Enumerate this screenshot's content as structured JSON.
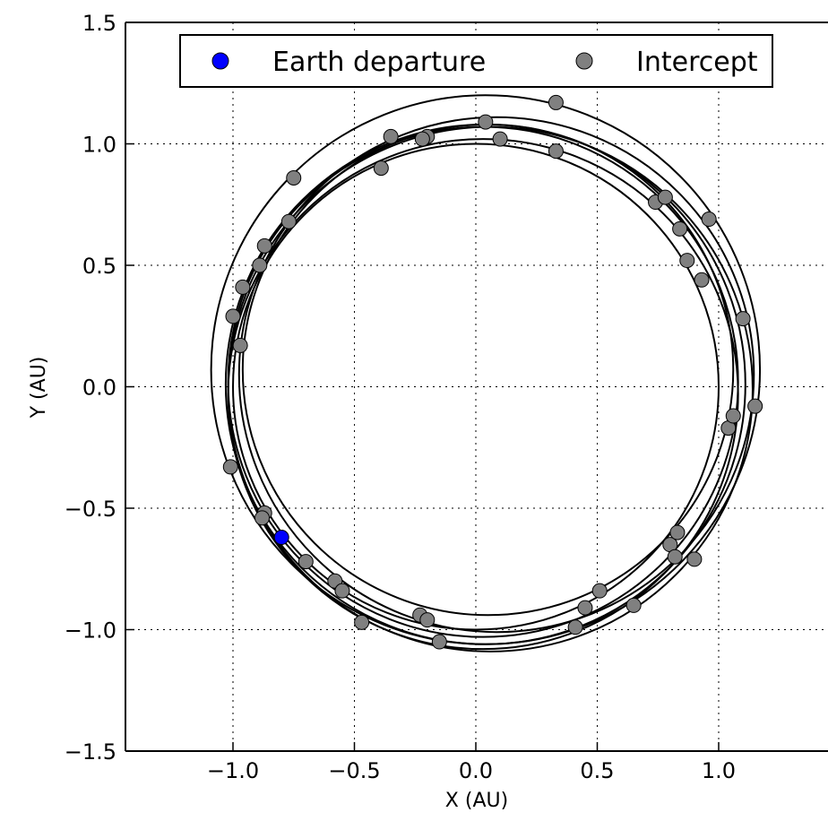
{
  "chart_data": {
    "type": "scatter",
    "xlabel": "X (AU)",
    "ylabel": "Y (AU)",
    "xlim": [
      -1.43,
      1.45
    ],
    "ylim": [
      -1.5,
      1.5
    ],
    "xticks": [
      -1.0,
      -0.5,
      0.0,
      0.5,
      1.0
    ],
    "yticks": [
      -1.5,
      -1.0,
      -0.5,
      0.0,
      0.5,
      1.0,
      1.5
    ],
    "xtick_labels": [
      "−1.0",
      "−0.5",
      "0.0",
      "0.5",
      "1.0"
    ],
    "ytick_labels": [
      "−1.5",
      "−1.0",
      "−0.5",
      "0.0",
      "0.5",
      "1.0",
      "1.5"
    ],
    "grid": true,
    "legend_placement": "top",
    "orbits": [
      {
        "cx": 0.0,
        "cy": 0.0,
        "r": 1.0
      },
      {
        "cx": 0.03,
        "cy": 0.02,
        "r": 1.05
      },
      {
        "cx": 0.05,
        "cy": 0.07,
        "r": 1.01
      },
      {
        "cx": 0.04,
        "cy": 0.01,
        "r": 1.07
      },
      {
        "cx": 0.03,
        "cy": -0.03,
        "r": 1.05
      },
      {
        "cx": 0.06,
        "cy": -0.01,
        "r": 1.08
      },
      {
        "cx": 0.085,
        "cy": 0.05,
        "r": 1.06
      },
      {
        "cx": 0.04,
        "cy": 0.07,
        "r": 1.13
      }
    ],
    "series": [
      {
        "name": "Earth departure",
        "color": "#0000ff",
        "points": [
          {
            "x": -0.8,
            "y": -0.62
          }
        ]
      },
      {
        "name": "Intercept",
        "color": "#808080",
        "points": [
          {
            "x": -0.75,
            "y": 0.86
          },
          {
            "x": -0.77,
            "y": 0.68
          },
          {
            "x": -0.87,
            "y": 0.58
          },
          {
            "x": -0.89,
            "y": 0.5
          },
          {
            "x": -0.96,
            "y": 0.41
          },
          {
            "x": -1.0,
            "y": 0.29
          },
          {
            "x": -0.97,
            "y": 0.17
          },
          {
            "x": -1.01,
            "y": -0.33
          },
          {
            "x": -0.87,
            "y": -0.52
          },
          {
            "x": -0.88,
            "y": -0.54
          },
          {
            "x": -0.7,
            "y": -0.72
          },
          {
            "x": -0.58,
            "y": -0.8
          },
          {
            "x": -0.55,
            "y": -0.84
          },
          {
            "x": -0.47,
            "y": -0.97
          },
          {
            "x": -0.23,
            "y": -0.94
          },
          {
            "x": -0.2,
            "y": -0.96
          },
          {
            "x": -0.15,
            "y": -1.05
          },
          {
            "x": 0.41,
            "y": -0.99
          },
          {
            "x": 0.45,
            "y": -0.91
          },
          {
            "x": 0.51,
            "y": -0.84
          },
          {
            "x": 0.65,
            "y": -0.9
          },
          {
            "x": 0.8,
            "y": -0.65
          },
          {
            "x": 0.82,
            "y": -0.7
          },
          {
            "x": 0.83,
            "y": -0.6
          },
          {
            "x": 0.9,
            "y": -0.71
          },
          {
            "x": 1.04,
            "y": -0.17
          },
          {
            "x": 1.06,
            "y": -0.12
          },
          {
            "x": 1.15,
            "y": -0.08
          },
          {
            "x": 1.1,
            "y": 0.28
          },
          {
            "x": 0.93,
            "y": 0.44
          },
          {
            "x": 0.87,
            "y": 0.52
          },
          {
            "x": 0.84,
            "y": 0.65
          },
          {
            "x": 0.74,
            "y": 0.76
          },
          {
            "x": 0.78,
            "y": 0.78
          },
          {
            "x": 0.96,
            "y": 0.69
          },
          {
            "x": 0.33,
            "y": 0.97
          },
          {
            "x": 0.33,
            "y": 1.17
          },
          {
            "x": 0.04,
            "y": 1.09
          },
          {
            "x": 0.1,
            "y": 1.02
          },
          {
            "x": -0.2,
            "y": 1.03
          },
          {
            "x": -0.22,
            "y": 1.02
          },
          {
            "x": -0.35,
            "y": 1.03
          },
          {
            "x": -0.39,
            "y": 0.9
          }
        ]
      }
    ]
  }
}
